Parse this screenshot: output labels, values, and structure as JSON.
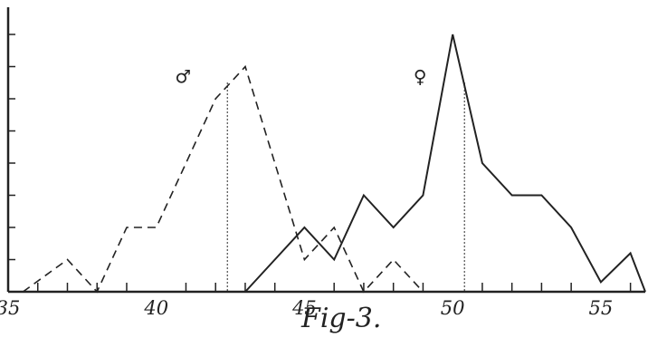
{
  "caption": "Fig-3.",
  "chart_data": {
    "type": "line",
    "title": "",
    "xlabel": "",
    "ylabel": "",
    "xlim": [
      35,
      56.5
    ],
    "ylim": [
      0,
      8
    ],
    "x_ticks": [
      35,
      40,
      45,
      50,
      55
    ],
    "grid": false,
    "series": [
      {
        "name": "♂",
        "style": "dashed",
        "x": [
          35.5,
          37,
          38,
          39,
          40,
          41,
          42,
          42.5,
          43,
          44,
          45,
          46,
          47,
          48,
          49
        ],
        "y": [
          0,
          1,
          0,
          2,
          2,
          4,
          6,
          6.5,
          7,
          4,
          1,
          2,
          0,
          1,
          0
        ]
      },
      {
        "name": "♀",
        "style": "solid",
        "x": [
          43,
          44,
          45,
          46,
          47,
          48,
          49,
          50,
          51,
          52,
          53,
          54,
          55,
          56,
          56.5
        ],
        "y": [
          0,
          1,
          2,
          1,
          3,
          2,
          3,
          8,
          4,
          3,
          3,
          2,
          0.3,
          1.2,
          0
        ]
      }
    ],
    "mean_lines": [
      {
        "series": "♂",
        "x": 42.4,
        "y": 6.5
      },
      {
        "series": "♀",
        "x": 50.4,
        "y": 6.5
      }
    ]
  }
}
